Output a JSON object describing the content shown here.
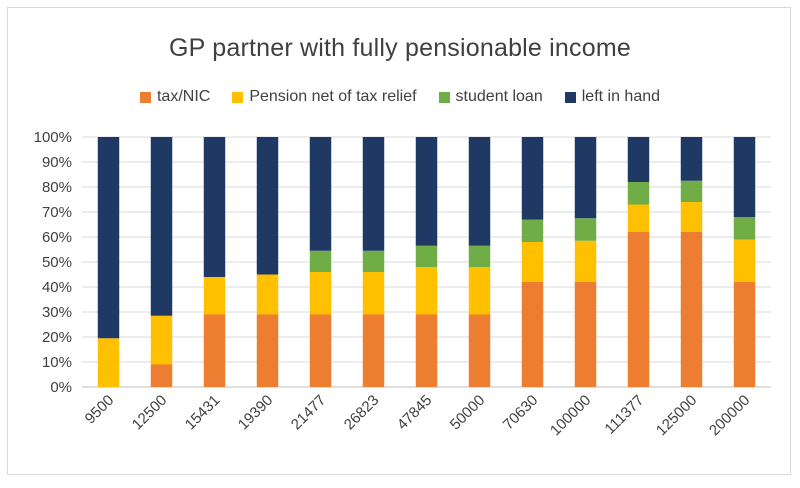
{
  "chart_data": {
    "type": "bar",
    "stacked": true,
    "title": "GP partner with fully pensionable income",
    "xlabel": "",
    "ylabel": "",
    "categories": [
      "9500",
      "12500",
      "15431",
      "19390",
      "21477",
      "26823",
      "47845",
      "50000",
      "70630",
      "100000",
      "111377",
      "125000",
      "200000"
    ],
    "series": [
      {
        "name": "tax/NIC",
        "color": "#ed7d31",
        "values": [
          0,
          9,
          29,
          29,
          29,
          29,
          29,
          29,
          42,
          42,
          62,
          62,
          42
        ]
      },
      {
        "name": "Pension net of tax relief",
        "color": "#ffc000",
        "values": [
          19.5,
          19.5,
          15,
          16,
          17,
          17,
          19,
          19,
          16,
          16.5,
          11,
          12,
          17
        ]
      },
      {
        "name": "student loan",
        "color": "#70ad47",
        "values": [
          0,
          0,
          0,
          0,
          8.5,
          8.5,
          8.5,
          8.5,
          9,
          9,
          9,
          8.5,
          9
        ]
      },
      {
        "name": "left in hand",
        "color": "#1f3864",
        "values": [
          80.5,
          71.5,
          56,
          55,
          45.5,
          45.5,
          43.5,
          43.5,
          33,
          32.5,
          18,
          17.5,
          32
        ]
      }
    ],
    "ylim": [
      0,
      100
    ],
    "yticks": [
      "0%",
      "10%",
      "20%",
      "30%",
      "40%",
      "50%",
      "60%",
      "70%",
      "80%",
      "90%",
      "100%"
    ],
    "grid": true,
    "legend": "top"
  }
}
